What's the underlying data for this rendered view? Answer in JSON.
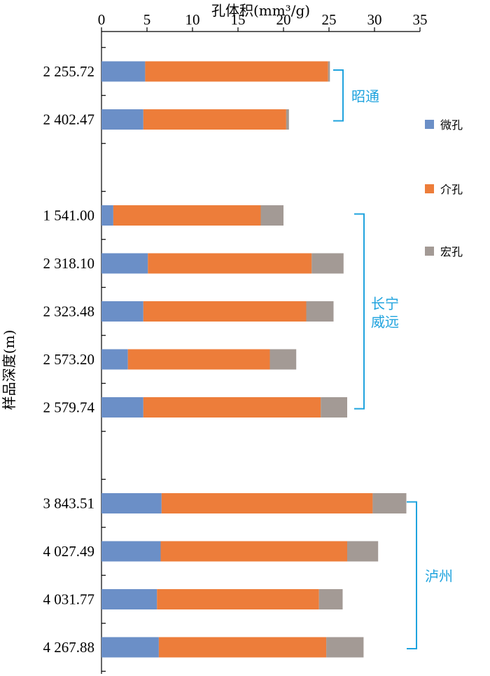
{
  "chart_data": {
    "type": "bar",
    "orientation": "horizontal",
    "stacked": true,
    "title": "",
    "xlabel": "孔体积(mm³/g)",
    "ylabel": "样品深度(m)",
    "xlim": [
      0,
      35
    ],
    "x_ticks": [
      "0",
      "5",
      "10",
      "15",
      "20",
      "25",
      "30",
      "35"
    ],
    "x_tick_values": [
      0,
      5,
      10,
      15,
      20,
      25,
      30,
      35
    ],
    "categories": [
      "2 255.72",
      "2 402.47",
      "",
      "1 541.00",
      "2 318.10",
      "2 323.48",
      "2 573.20",
      "2 579.74",
      "",
      "3 843.51",
      "4 027.49",
      "4 031.77",
      "4 267.88"
    ],
    "series": [
      {
        "name": "微孔",
        "color": "#6b8fc7",
        "values": [
          4.8,
          4.6,
          null,
          1.3,
          5.1,
          4.6,
          2.9,
          4.6,
          null,
          6.6,
          6.5,
          6.1,
          6.3
        ]
      },
      {
        "name": "介孔",
        "color": "#ed7d3a",
        "values": [
          20.1,
          15.7,
          null,
          16.2,
          18.0,
          17.9,
          15.6,
          19.5,
          null,
          23.2,
          20.5,
          17.8,
          18.4
        ]
      },
      {
        "name": "宏孔",
        "color": "#a39a95",
        "values": [
          0.2,
          0.3,
          null,
          2.5,
          3.5,
          3.0,
          2.9,
          2.9,
          null,
          3.7,
          3.4,
          2.6,
          4.1
        ]
      }
    ],
    "groups": [
      {
        "label": "昭通",
        "categories": [
          "2 255.72",
          "2 402.47"
        ]
      },
      {
        "label": "长宁威远",
        "categories": [
          "1 541.00",
          "2 318.10",
          "2 323.48",
          "2 573.20",
          "2 579.74"
        ]
      },
      {
        "label": "泸州",
        "categories": [
          "3 843.51",
          "4 027.49",
          "4 031.77",
          "4 267.88"
        ]
      }
    ],
    "group_color": "#1fa3de",
    "legend_position": "right",
    "grid": false
  }
}
